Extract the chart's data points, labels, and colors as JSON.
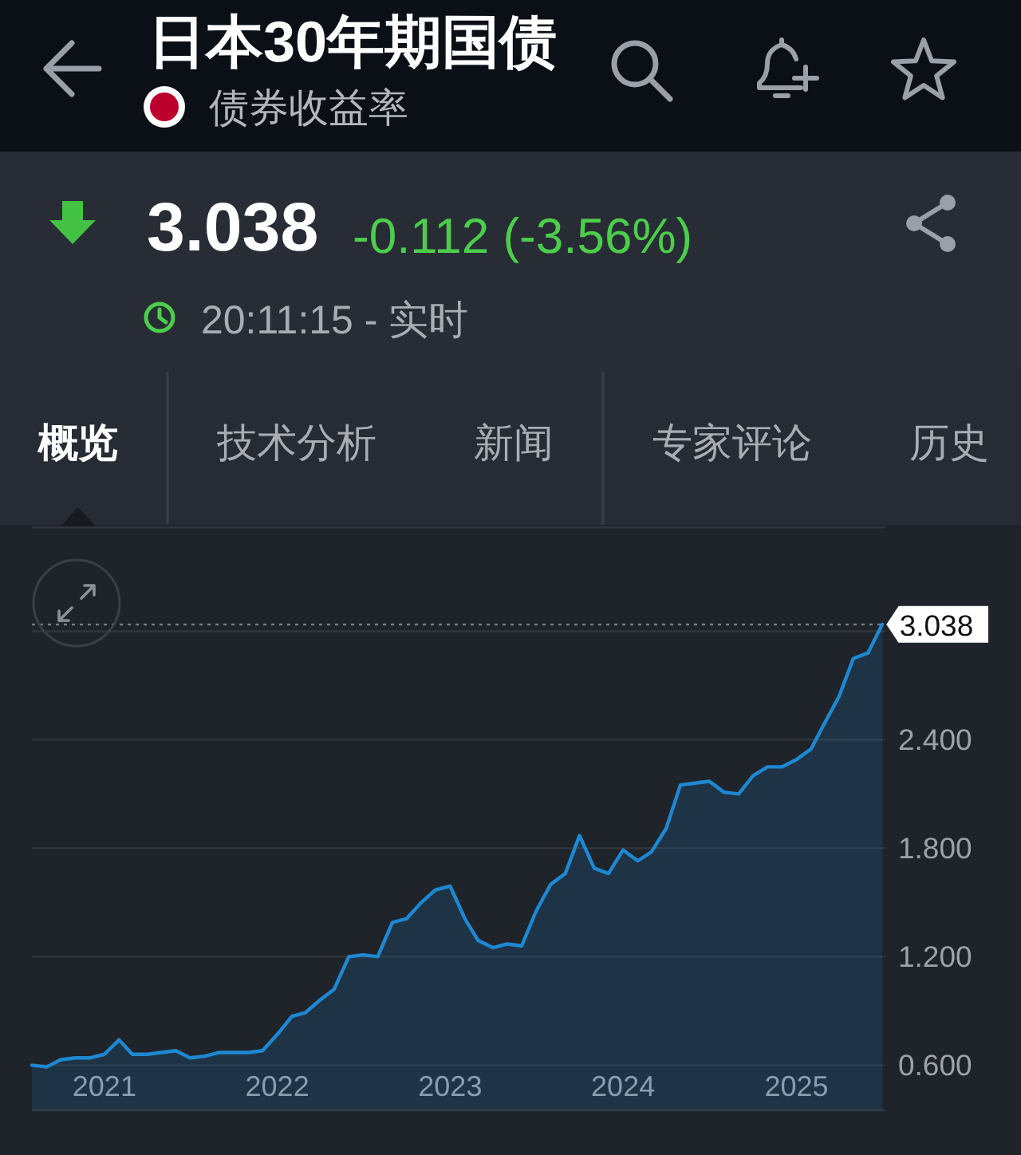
{
  "chart_data": {
    "type": "area",
    "title": "日本30年期国债",
    "subtitle": "债券收益率",
    "annotations": [
      "3.038",
      "-0.112 (-3.56%)",
      "20:11:15 - 实时",
      "概览",
      "技术分析",
      "新闻",
      "专家评论",
      "历史"
    ],
    "x": [
      "2020-08",
      "2020-09",
      "2020-10",
      "2020-11",
      "2020-12",
      "2021-01",
      "2021-02",
      "2021-03",
      "2021-04",
      "2021-05",
      "2021-06",
      "2021-07",
      "2021-08",
      "2021-09",
      "2021-10",
      "2021-11",
      "2021-12",
      "2022-01",
      "2022-02",
      "2022-03",
      "2022-04",
      "2022-05",
      "2022-06",
      "2022-07",
      "2022-08",
      "2022-09",
      "2022-10",
      "2022-11",
      "2022-12",
      "2023-01",
      "2023-02",
      "2023-03",
      "2023-04",
      "2023-05",
      "2023-06",
      "2023-07",
      "2023-08",
      "2023-09",
      "2023-10",
      "2023-11",
      "2023-12",
      "2024-01",
      "2024-02",
      "2024-03",
      "2024-04",
      "2024-05",
      "2024-06",
      "2024-07",
      "2024-08",
      "2024-09",
      "2024-10",
      "2024-11",
      "2024-12",
      "2025-01",
      "2025-02",
      "2025-03",
      "2025-04",
      "2025-05",
      "2025-06",
      "2025-07"
    ],
    "series": [
      {
        "color": "#1e88d2",
        "values": [
          0.6,
          0.59,
          0.63,
          0.64,
          0.64,
          0.66,
          0.74,
          0.66,
          0.66,
          0.67,
          0.68,
          0.64,
          0.65,
          0.67,
          0.67,
          0.67,
          0.68,
          0.77,
          0.87,
          0.89,
          0.96,
          1.02,
          1.2,
          1.21,
          1.2,
          1.39,
          1.41,
          1.5,
          1.57,
          1.59,
          1.41,
          1.29,
          1.25,
          1.27,
          1.26,
          1.45,
          1.6,
          1.66,
          1.87,
          1.69,
          1.66,
          1.79,
          1.73,
          1.78,
          1.91,
          2.15,
          2.16,
          2.17,
          2.11,
          2.1,
          2.2,
          2.25,
          2.25,
          2.29,
          2.35,
          2.49,
          2.64,
          2.85,
          2.88,
          3.038
        ]
      }
    ],
    "xlim": [
      "2020-08",
      "2025-07"
    ],
    "xticks": [
      "2021",
      "2022",
      "2023",
      "2024",
      "2025"
    ],
    "ylim": [
      0.35,
      3.58
    ],
    "yticks": [
      {
        "value": 0.6,
        "label": "0.600"
      },
      {
        "value": 1.2,
        "label": "1.200"
      },
      {
        "value": 1.8,
        "label": "1.800"
      },
      {
        "value": 2.4,
        "label": "2.400"
      },
      {
        "value": 3.0,
        "label": null
      }
    ],
    "ref_lines": [
      {
        "axis": "y",
        "value": 3.038,
        "label": "3.038",
        "line_style": "dotted"
      }
    ],
    "grid": "y"
  }
}
